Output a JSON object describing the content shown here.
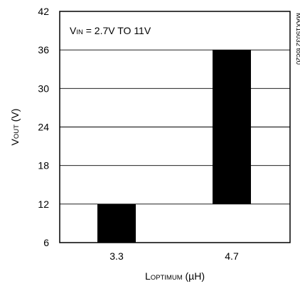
{
  "chart_data": {
    "type": "bar",
    "categories": [
      "3.3",
      "4.7"
    ],
    "series": [
      {
        "values": [
          [
            6,
            12
          ],
          [
            12,
            36
          ]
        ]
      }
    ],
    "yticks": [
      6,
      12,
      18,
      24,
      30,
      36,
      42
    ],
    "ylim": [
      6,
      42
    ],
    "grid": true,
    "legend": "none",
    "ylabel": {
      "main": "V",
      "sub": "OUT",
      "suffix": " (V)"
    },
    "xlabel": {
      "main": "L",
      "sub": "OPTIMUM",
      "suffix": " (µH)"
    },
    "annotation": {
      "main": "V",
      "sub": "IN",
      "suffix": " = 2.7V TO 11V"
    },
    "side_code": "MAX15032 toc20",
    "colors": {
      "bar": "#000000",
      "grid": "#000000",
      "background": "#ffffff"
    }
  }
}
